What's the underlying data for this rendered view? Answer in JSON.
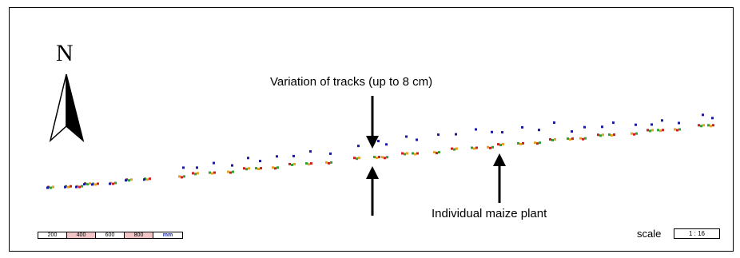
{
  "compass": {
    "letter": "N"
  },
  "annotations": {
    "variation": "Variation of tracks (up to 8 cm)",
    "plant": "Individual maize plant"
  },
  "scale_bar": {
    "segments": [
      "200",
      "400",
      "600",
      "800",
      "mm"
    ]
  },
  "scale": {
    "label": "scale",
    "value": "1 : 16"
  },
  "colors": {
    "track_blue": "#1a1aa0",
    "track_red": "#cc2020",
    "track_green": "#30a030",
    "track_orange": "#e8a020",
    "scale_pink": "#f2c6c6"
  }
}
